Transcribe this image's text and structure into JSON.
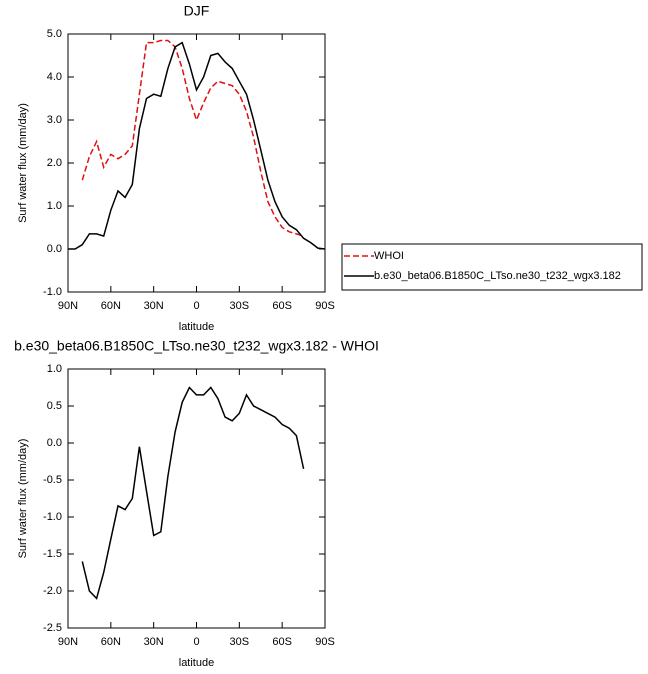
{
  "chart_data": [
    {
      "type": "line",
      "title": "DJF",
      "y_label": "Surf water flux (mm/day)",
      "x_label": "latitude",
      "x": [
        90,
        85,
        80,
        75,
        70,
        65,
        60,
        55,
        50,
        45,
        40,
        35,
        30,
        25,
        20,
        15,
        10,
        5,
        0,
        -5,
        -10,
        -15,
        -20,
        -25,
        -30,
        -35,
        -40,
        -45,
        -50,
        -55,
        -60,
        -65,
        -70,
        -75,
        -80,
        -85,
        -90
      ],
      "series": [
        {
          "name": "WHOI",
          "color": "#e01010",
          "style": "dashed",
          "values": [
            null,
            null,
            1.6,
            2.15,
            2.5,
            1.9,
            2.2,
            2.1,
            2.2,
            2.4,
            3.6,
            4.8,
            4.8,
            4.85,
            4.85,
            4.7,
            4.2,
            3.5,
            3.0,
            3.4,
            3.75,
            3.9,
            3.85,
            3.8,
            3.6,
            3.2,
            2.6,
            1.8,
            1.1,
            0.75,
            0.5,
            0.4,
            0.35,
            0.3,
            null,
            null,
            null
          ]
        },
        {
          "name": "b.e30_beta06.B1850C_LTso.ne30_t232_wgx3.182",
          "color": "#000000",
          "style": "solid",
          "values": [
            0.0,
            0.0,
            0.1,
            0.35,
            0.35,
            0.3,
            0.9,
            1.35,
            1.2,
            1.5,
            2.8,
            3.5,
            3.6,
            3.55,
            4.2,
            4.7,
            4.8,
            4.3,
            3.7,
            4.0,
            4.5,
            4.55,
            4.35,
            4.2,
            3.9,
            3.6,
            3.0,
            2.3,
            1.6,
            1.1,
            0.75,
            0.55,
            0.45,
            0.25,
            0.15,
            0.02,
            0.0
          ]
        }
      ],
      "xlim": [
        90,
        -90
      ],
      "xticks": [
        {
          "value": 90,
          "label": "90N"
        },
        {
          "value": 60,
          "label": "60N"
        },
        {
          "value": 30,
          "label": "30N"
        },
        0,
        {
          "value": -30,
          "label": "30S"
        },
        {
          "value": -60,
          "label": "60S"
        },
        {
          "value": -90,
          "label": "90S"
        }
      ],
      "ylim": [
        -1.0,
        5.0
      ],
      "yticks": [
        {
          "value": -1,
          "label": "-1.0"
        },
        {
          "value": 0,
          "label": "0.0"
        },
        {
          "value": 1,
          "label": "1.0"
        },
        {
          "value": 2,
          "label": "2.0"
        },
        {
          "value": 3,
          "label": "3.0"
        },
        {
          "value": 4,
          "label": "4.0"
        },
        {
          "value": 5,
          "label": "5.0"
        }
      ],
      "legend": "lower-right-outside"
    },
    {
      "type": "line",
      "title": "b.e30_beta06.B1850C_LTso.ne30_t232_wgx3.182 - WHOI",
      "y_label": "Surf water flux (mm/day)",
      "x_label": "latitude",
      "x": [
        90,
        85,
        80,
        75,
        70,
        65,
        60,
        55,
        50,
        45,
        40,
        35,
        30,
        25,
        20,
        15,
        10,
        5,
        0,
        -5,
        -10,
        -15,
        -20,
        -25,
        -30,
        -35,
        -40,
        -45,
        -50,
        -55,
        -60,
        -65,
        -70,
        -75,
        -80,
        -85,
        -90
      ],
      "series": [
        {
          "color": "#000000",
          "style": "solid",
          "values": [
            null,
            null,
            -1.6,
            -2.0,
            -2.1,
            -1.75,
            -1.3,
            -0.85,
            -0.9,
            -0.75,
            -0.05,
            -0.65,
            -1.25,
            -1.2,
            -0.45,
            0.15,
            0.55,
            0.75,
            0.65,
            0.65,
            0.75,
            0.6,
            0.35,
            0.3,
            0.4,
            0.65,
            0.5,
            0.45,
            0.4,
            0.35,
            0.25,
            0.2,
            0.1,
            -0.35,
            null,
            null,
            null
          ]
        }
      ],
      "xlim": [
        90,
        -90
      ],
      "xticks": [
        {
          "value": 90,
          "label": "90N"
        },
        {
          "value": 60,
          "label": "60N"
        },
        {
          "value": 30,
          "label": "30N"
        },
        0,
        {
          "value": -30,
          "label": "30S"
        },
        {
          "value": -60,
          "label": "60S"
        },
        {
          "value": -90,
          "label": "90S"
        }
      ],
      "ylim": [
        -2.5,
        1.0
      ],
      "yticks": [
        {
          "value": -2.5,
          "label": "-2.5"
        },
        {
          "value": -2,
          "label": "-2.0"
        },
        {
          "value": -1.5,
          "label": "-1.5"
        },
        {
          "value": -1,
          "label": "-1.0"
        },
        {
          "value": -0.5,
          "label": "-0.5"
        },
        {
          "value": 0,
          "label": "0.0"
        },
        {
          "value": 0.5,
          "label": "0.5"
        },
        {
          "value": 1,
          "label": "1.0"
        }
      ]
    }
  ]
}
